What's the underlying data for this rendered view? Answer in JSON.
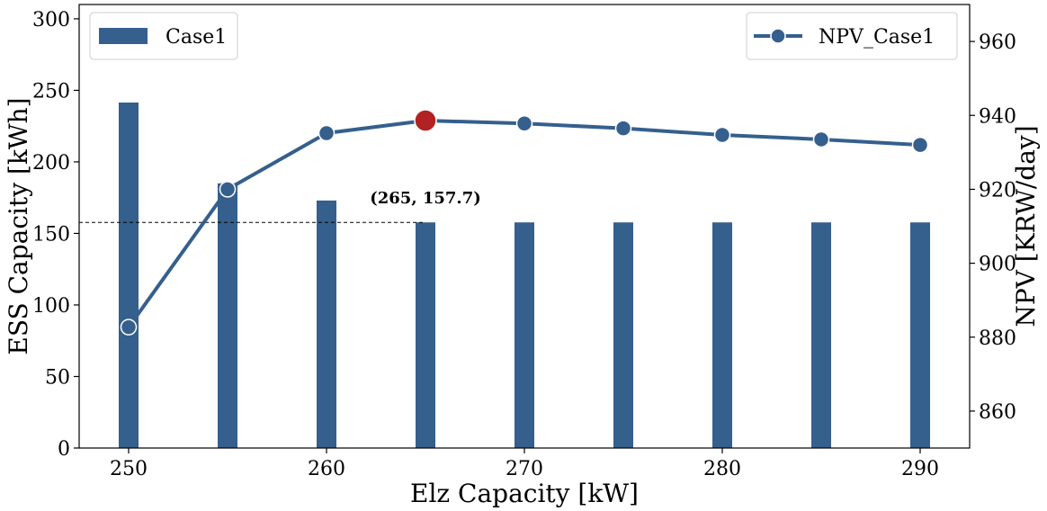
{
  "chart_data": {
    "type": "bar+line",
    "title": "",
    "xlabel": "Elz Capacity [kW]",
    "ylabel_left": "ESS Capacity [kWh]",
    "ylabel_right": "NPV [KRW/day]",
    "xlim": [
      247.5,
      292.5
    ],
    "ylim_left": [
      0,
      310
    ],
    "ylim_right": [
      850,
      970
    ],
    "x_ticks": [
      "250",
      "260",
      "270",
      "280",
      "290"
    ],
    "y_left_ticks": [
      "0",
      "50",
      "100",
      "150",
      "200",
      "250",
      "300"
    ],
    "y_right_ticks": [
      "860",
      "880",
      "900",
      "920",
      "940",
      "960"
    ],
    "grid": false,
    "bar_series": {
      "name": "Case1",
      "color": "#355f8d",
      "x": [
        250,
        255,
        260,
        265,
        270,
        275,
        280,
        285,
        290
      ],
      "values": [
        241.5,
        185.0,
        173.0,
        157.7,
        157.7,
        157.7,
        157.7,
        157.7,
        157.7
      ]
    },
    "line_series": {
      "name": "NPV_Case1",
      "color": "#355f8d",
      "x": [
        250,
        255,
        260,
        265,
        270,
        275,
        280,
        285,
        290
      ],
      "values": [
        882.7,
        920.0,
        935.2,
        938.6,
        937.8,
        936.5,
        934.7,
        933.5,
        932.0
      ]
    },
    "highlight_point": {
      "x": 265,
      "y": 938.6,
      "color": "#b22222"
    },
    "reference_line": {
      "y": 157.7,
      "style": "dashed"
    },
    "annotation": "(265, 157.7)",
    "legend_left": {
      "label": "Case1",
      "placement": "top-left"
    },
    "legend_right": {
      "label": "NPV_Case1",
      "placement": "top-right"
    }
  }
}
